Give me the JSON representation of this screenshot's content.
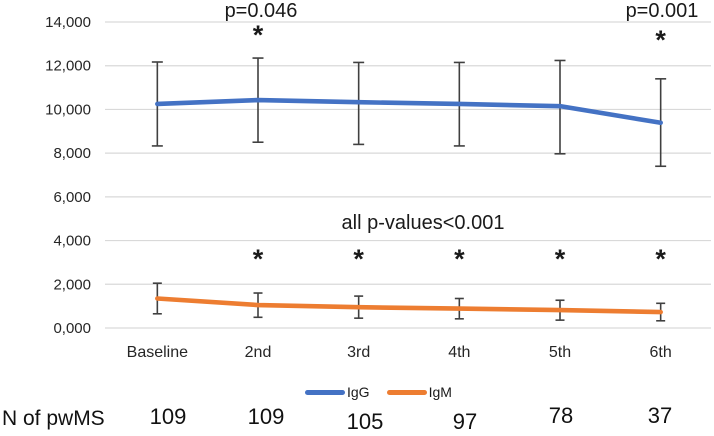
{
  "chart_data": {
    "type": "line",
    "categories": [
      "Baseline",
      "2nd",
      "3rd",
      "4th",
      "5th",
      "6th"
    ],
    "series": [
      {
        "name": "IgG",
        "color": "#4472C4",
        "values": [
          10250,
          10430,
          10330,
          10250,
          10150,
          9390
        ],
        "error_upper": [
          12170,
          12350,
          12150,
          12150,
          12240,
          11400
        ],
        "error_lower": [
          8330,
          8500,
          8400,
          8330,
          7970,
          7400
        ]
      },
      {
        "name": "IgM",
        "color": "#ED7D31",
        "values": [
          1350,
          1050,
          950,
          890,
          820,
          730
        ],
        "error_upper": [
          2050,
          1600,
          1460,
          1350,
          1270,
          1130
        ],
        "error_lower": [
          650,
          490,
          450,
          420,
          360,
          330
        ]
      }
    ],
    "y_ticks": [
      "0,000",
      "2,000",
      "4,000",
      "6,000",
      "8,000",
      "10,000",
      "12,000",
      "14,000"
    ],
    "y_tick_values": [
      0,
      2000,
      4000,
      6000,
      8000,
      10000,
      12000,
      14000
    ],
    "ylim": [
      0,
      14000
    ],
    "grid": true,
    "legend_position": "bottom-center",
    "annotations": {
      "igg_p_left": "p=0.046",
      "igg_p_right": "p=0.001",
      "igm_p": "all p-values<0.001",
      "asterisk_symbol": "*",
      "igg_asterisk_categories": [
        "2nd",
        "6th"
      ],
      "igm_asterisk_categories": [
        "2nd",
        "3rd",
        "4th",
        "5th",
        "6th"
      ]
    },
    "n_row": {
      "label": "N of pwMS",
      "values": [
        "109",
        "109",
        "105",
        "97",
        "78",
        "37"
      ]
    },
    "colors": {
      "gridline": "#D9D9D9",
      "error_bar": "#404040",
      "axis_text": "#262626",
      "annotation_text": "#1A1A1A"
    }
  }
}
